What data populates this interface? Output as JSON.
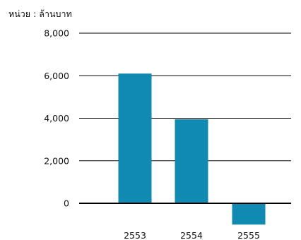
{
  "chart_data": {
    "type": "bar",
    "unit_label": "หน่วย : ล้านบาท",
    "categories": [
      "2553",
      "2554",
      "2555"
    ],
    "values": [
      6100,
      3950,
      -1000
    ],
    "ylim": [
      -1000,
      8000
    ],
    "yticks": [
      8000,
      6000,
      4000,
      2000,
      0
    ],
    "ytick_labels": [
      "8,000",
      "6,000",
      "4,000",
      "2,000",
      "0"
    ],
    "grid": true,
    "legend": "none",
    "bar_color": "#118ab2",
    "grid_color": "#000000"
  }
}
